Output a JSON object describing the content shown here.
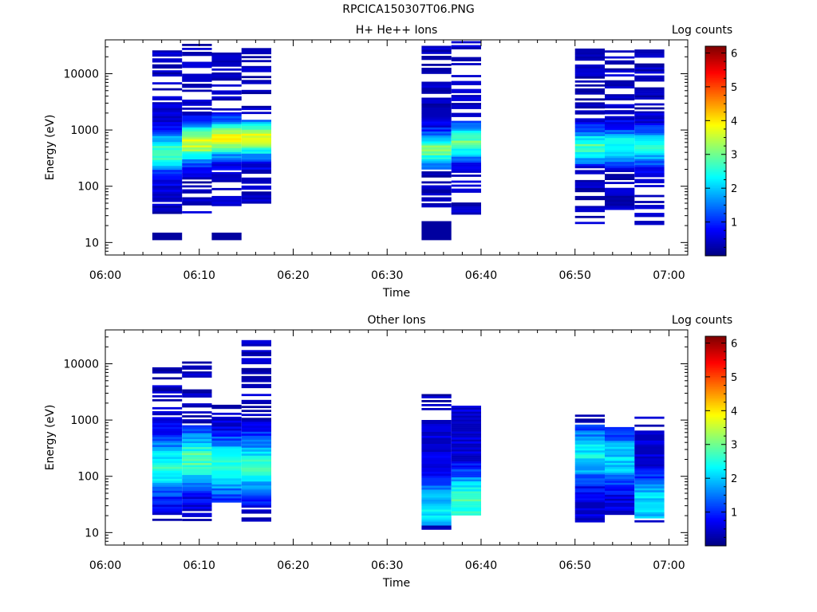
{
  "figure": {
    "title": "RPCICA150307T06.PNG"
  },
  "colors": {
    "background": "#ffffff",
    "axis": "#000000",
    "colormap": [
      "#00007f",
      "#0000ff",
      "#007fff",
      "#00ffff",
      "#7fff7f",
      "#ffff00",
      "#ff7f00",
      "#ff0000",
      "#7f0000"
    ]
  },
  "chart_data": [
    {
      "type": "heatmap",
      "title": "H+ He++ Ions",
      "xlabel": "Time",
      "ylabel": "Energy (eV)",
      "y_scale": "log",
      "xlim": [
        "06:00",
        "07:02"
      ],
      "ylim": [
        6,
        40000
      ],
      "x_ticks": [
        "06:00",
        "06:10",
        "06:20",
        "06:30",
        "06:40",
        "06:50",
        "07:00"
      ],
      "y_ticks": [
        "10",
        "100",
        "1000",
        "10000"
      ],
      "colorbar": {
        "label": "Log counts",
        "range": [
          0,
          6.2
        ],
        "ticks": [
          "1",
          "2",
          "3",
          "4",
          "5",
          "6"
        ]
      },
      "time_blocks": [
        {
          "start": "06:05:00",
          "end": "06:08:10",
          "peak_energy": 400,
          "peak_level": 2.9,
          "width": 0.33,
          "fill": [
            60,
            3000
          ],
          "emin": 35,
          "emax": 26000,
          "low_block": [
            11,
            15
          ]
        },
        {
          "start": "06:08:10",
          "end": "06:11:20",
          "peak_energy": 600,
          "peak_level": 3.6,
          "width": 0.33,
          "fill": [
            150,
            2000
          ],
          "emin": 35,
          "emax": 34000
        },
        {
          "start": "06:11:20",
          "end": "06:14:30",
          "peak_energy": 700,
          "peak_level": 3.9,
          "width": 0.3,
          "fill": [
            200,
            2000
          ],
          "emin": 45,
          "emax": 33000,
          "low_block": [
            11,
            15
          ]
        },
        {
          "start": "06:14:30",
          "end": "06:17:40",
          "peak_energy": 700,
          "peak_level": 3.9,
          "width": 0.3,
          "fill": [
            200,
            1500
          ],
          "emin": 50,
          "emax": 31000
        },
        {
          "start": "06:33:40",
          "end": "06:36:50",
          "peak_energy": 450,
          "peak_level": 3.0,
          "width": 0.3,
          "fill": [
            200,
            2500
          ],
          "emin": 45,
          "emax": 34000,
          "low_block": [
            11,
            24
          ]
        },
        {
          "start": "06:36:50",
          "end": "06:40:00",
          "peak_energy": 600,
          "peak_level": 2.9,
          "width": 0.3,
          "fill": [
            180,
            1500
          ],
          "emin": 28,
          "emax": 38000
        },
        {
          "start": "06:50:00",
          "end": "06:53:10",
          "peak_energy": 500,
          "peak_level": 2.8,
          "width": 0.3,
          "fill": [
            220,
            1500
          ],
          "emin": 22,
          "emax": 33000
        },
        {
          "start": "06:53:10",
          "end": "06:56:20",
          "peak_energy": 500,
          "peak_level": 2.6,
          "width": 0.3,
          "fill": [
            180,
            1500
          ],
          "emin": 40,
          "emax": 36000
        },
        {
          "start": "06:56:20",
          "end": "06:59:30",
          "peak_energy": 500,
          "peak_level": 2.5,
          "width": 0.3,
          "fill": [
            150,
            2200
          ],
          "emin": 22,
          "emax": 27000
        }
      ]
    },
    {
      "type": "heatmap",
      "title": "Other Ions",
      "xlabel": "Time",
      "ylabel": "Energy (eV)",
      "y_scale": "log",
      "xlim": [
        "06:00",
        "07:02"
      ],
      "ylim": [
        6,
        40000
      ],
      "x_ticks": [
        "06:00",
        "06:10",
        "06:20",
        "06:30",
        "06:40",
        "06:50",
        "07:00"
      ],
      "y_ticks": [
        "10",
        "100",
        "1000",
        "10000"
      ],
      "colorbar": {
        "label": "Log counts",
        "range": [
          0,
          6.2
        ],
        "ticks": [
          "1",
          "2",
          "3",
          "4",
          "5",
          "6"
        ]
      },
      "time_blocks": [
        {
          "start": "06:05:00",
          "end": "06:08:10",
          "peak_energy": 150,
          "peak_level": 2.5,
          "width": 0.5,
          "fill": [
            20,
            1100
          ],
          "emin": 16,
          "emax": 12000
        },
        {
          "start": "06:08:10",
          "end": "06:11:20",
          "peak_energy": 200,
          "peak_level": 2.8,
          "width": 0.5,
          "fill": [
            25,
            800
          ],
          "emin": 16,
          "emax": 11000
        },
        {
          "start": "06:11:20",
          "end": "06:14:30",
          "peak_energy": 150,
          "peak_level": 2.7,
          "width": 0.5,
          "fill": [
            35,
            1100
          ],
          "emin": 35,
          "emax": 2200
        },
        {
          "start": "06:14:30",
          "end": "06:17:40",
          "peak_energy": 150,
          "peak_level": 2.6,
          "width": 0.5,
          "fill": [
            30,
            1000
          ],
          "emin": 16,
          "emax": 31000
        },
        {
          "start": "06:33:40",
          "end": "06:36:50",
          "peak_energy": 25,
          "peak_level": 2.3,
          "width": 0.5,
          "fill": [
            13,
            1000
          ],
          "emin": 11,
          "emax": 2900
        },
        {
          "start": "06:36:50",
          "end": "06:40:00",
          "peak_energy": 35,
          "peak_level": 2.8,
          "width": 0.5,
          "fill": [
            20,
            1800
          ],
          "emin": 16,
          "emax": 1800
        },
        {
          "start": "06:50:00",
          "end": "06:53:10",
          "peak_energy": 250,
          "peak_level": 2.3,
          "width": 0.5,
          "fill": [
            18,
            800
          ],
          "emin": 16,
          "emax": 1250
        },
        {
          "start": "06:53:10",
          "end": "06:56:20",
          "peak_energy": 200,
          "peak_level": 2.1,
          "width": 0.5,
          "fill": [
            22,
            750
          ],
          "emin": 22,
          "emax": 750
        },
        {
          "start": "06:56:20",
          "end": "06:59:30",
          "peak_energy": 30,
          "peak_level": 2.2,
          "width": 0.5,
          "fill": [
            18,
            650
          ],
          "emin": 16,
          "emax": 1150
        }
      ]
    }
  ]
}
